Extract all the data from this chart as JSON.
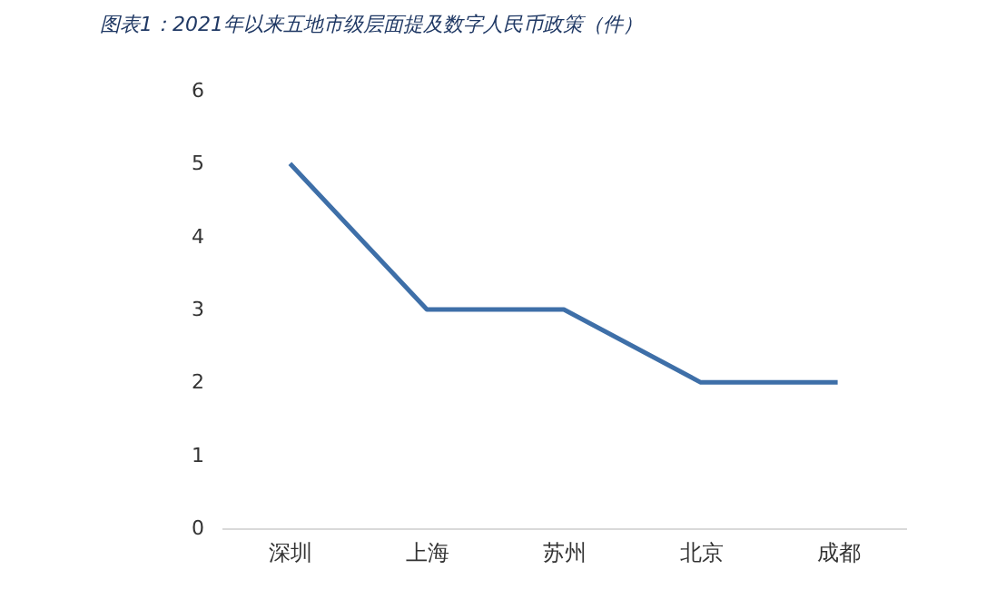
{
  "chart_data": {
    "type": "line",
    "title": "图表1：2021年以来五地市级层面提及数字人民币政策（件）",
    "categories": [
      "深圳",
      "上海",
      "苏州",
      "北京",
      "成都"
    ],
    "series": [
      {
        "color": "#3e6fa8",
        "values": [
          5,
          3,
          3,
          2,
          2
        ]
      }
    ],
    "ylim": [
      0,
      6
    ],
    "yticks": [
      0,
      1,
      2,
      3,
      4,
      5,
      6
    ],
    "grid": false,
    "marker": "none",
    "line_style": "solid"
  }
}
